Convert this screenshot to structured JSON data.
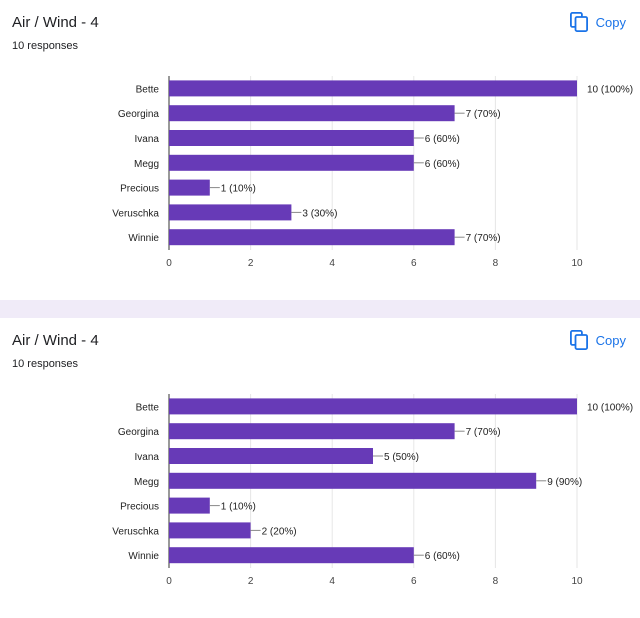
{
  "cards": [
    {
      "title": "Air / Wind - 4",
      "subtitle": "10 responses",
      "copy_label": "Copy"
    },
    {
      "title": "Air / Wind - 4",
      "subtitle": "10 responses",
      "copy_label": "Copy"
    }
  ],
  "colors": {
    "bar": "#673ab7",
    "accent": "#1a73e8",
    "divider": "#f0ebf8"
  },
  "chart_data": [
    {
      "type": "bar",
      "orientation": "horizontal",
      "categories": [
        "Bette",
        "Georgina",
        "Ivana",
        "Megg",
        "Precious",
        "Veruschka",
        "Winnie"
      ],
      "values": [
        10,
        7,
        6,
        6,
        1,
        3,
        7
      ],
      "value_labels": [
        "10 (100%)",
        "7 (70%)",
        "6 (60%)",
        "6 (60%)",
        "1 (10%)",
        "3 (30%)",
        "7 (70%)"
      ],
      "xlim": [
        0,
        10
      ],
      "xticks": [
        0,
        2,
        4,
        6,
        8,
        10
      ],
      "grid": true
    },
    {
      "type": "bar",
      "orientation": "horizontal",
      "categories": [
        "Bette",
        "Georgina",
        "Ivana",
        "Megg",
        "Precious",
        "Veruschka",
        "Winnie"
      ],
      "values": [
        10,
        7,
        5,
        9,
        1,
        2,
        6
      ],
      "value_labels": [
        "10 (100%)",
        "7 (70%)",
        "5 (50%)",
        "9 (90%)",
        "1 (10%)",
        "2 (20%)",
        "6 (60%)"
      ],
      "xlim": [
        0,
        10
      ],
      "xticks": [
        0,
        2,
        4,
        6,
        8,
        10
      ],
      "grid": true
    }
  ]
}
